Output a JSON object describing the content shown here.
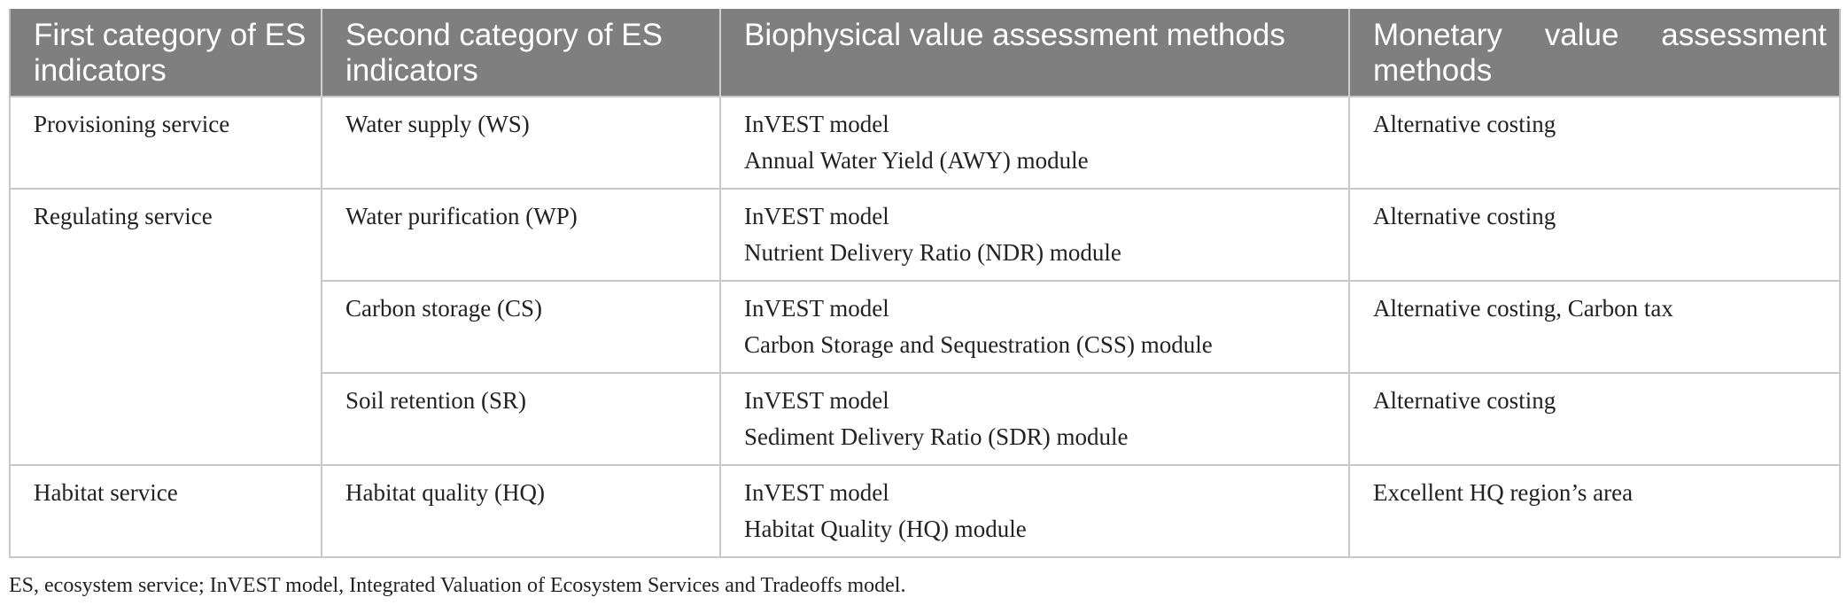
{
  "table": {
    "headers": [
      "First category of ES indicators",
      "Second category of ES indicators",
      "Biophysical value assessment methods",
      "Monetary value assessment methods"
    ],
    "groups": [
      {
        "first_category": "Provisioning service",
        "rows": [
          {
            "second_category": "Water supply (WS)",
            "biophysical": [
              "InVEST model",
              "Annual Water Yield (AWY) module"
            ],
            "monetary": "Alternative costing"
          }
        ]
      },
      {
        "first_category": "Regulating service",
        "rows": [
          {
            "second_category": "Water purification (WP)",
            "biophysical": [
              "InVEST model",
              "Nutrient Delivery Ratio (NDR) module"
            ],
            "monetary": "Alternative costing"
          },
          {
            "second_category": "Carbon storage (CS)",
            "biophysical": [
              "InVEST model",
              "Carbon Storage and Sequestration (CSS) module"
            ],
            "monetary": "Alternative costing, Carbon tax"
          },
          {
            "second_category": "Soil retention (SR)",
            "biophysical": [
              "InVEST model",
              "Sediment Delivery Ratio (SDR) module"
            ],
            "monetary": "Alternative costing"
          }
        ]
      },
      {
        "first_category": "Habitat service",
        "rows": [
          {
            "second_category": "Habitat quality (HQ)",
            "biophysical": [
              "InVEST model",
              "Habitat Quality (HQ) module"
            ],
            "monetary": "Excellent HQ region’s area"
          }
        ]
      }
    ]
  },
  "footnote": "ES, ecosystem service; InVEST model, Integrated Valuation of Ecosystem Services and Tradeoffs model."
}
